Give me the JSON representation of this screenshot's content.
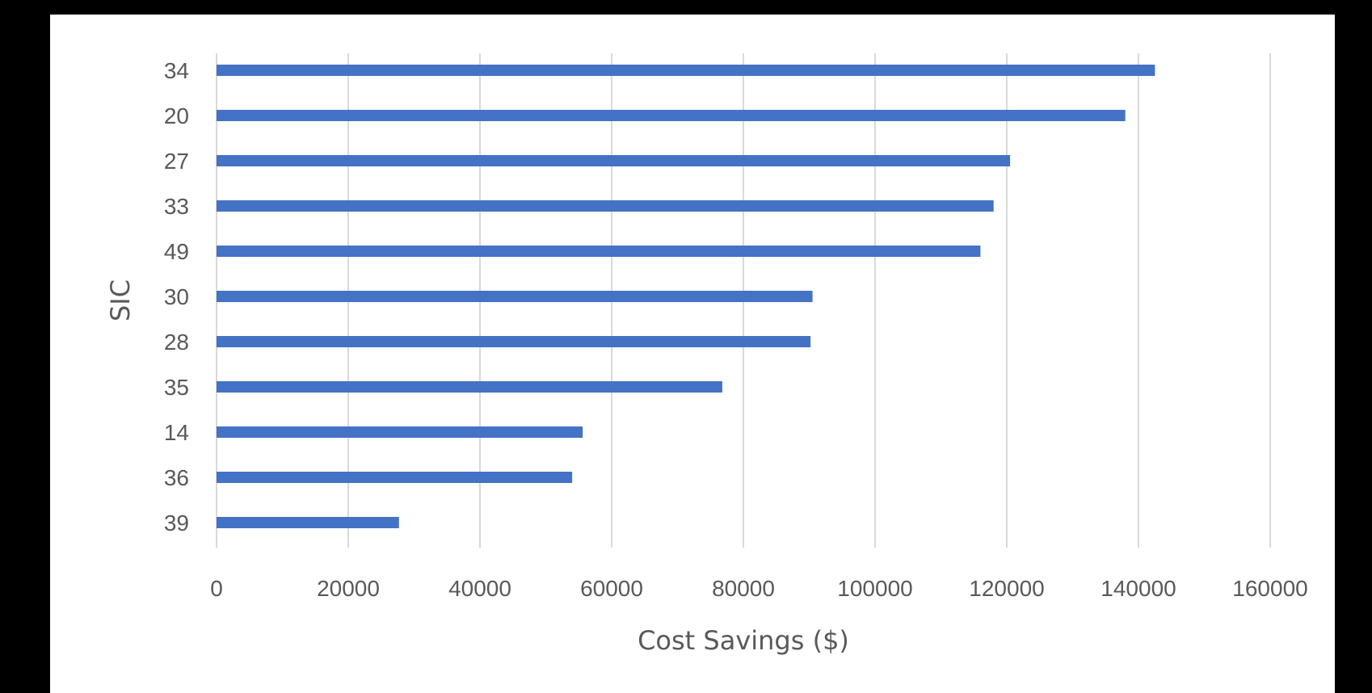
{
  "chart_data": {
    "type": "bar",
    "orientation": "horizontal",
    "categories": [
      "34",
      "20",
      "27",
      "33",
      "49",
      "30",
      "28",
      "35",
      "14",
      "36",
      "39"
    ],
    "values": [
      142500,
      138000,
      120500,
      118000,
      116000,
      90500,
      90200,
      76800,
      55600,
      54000,
      27700
    ],
    "xlabel": "Cost Savings ($)",
    "ylabel": "SIC",
    "xlim": [
      0,
      160000
    ],
    "xticks": [
      "0",
      "20000",
      "40000",
      "60000",
      "80000",
      "100000",
      "120000",
      "140000",
      "160000"
    ],
    "grid": "vertical",
    "bar_color": "#4472C4",
    "gridline_color": "#D9D9D9"
  }
}
